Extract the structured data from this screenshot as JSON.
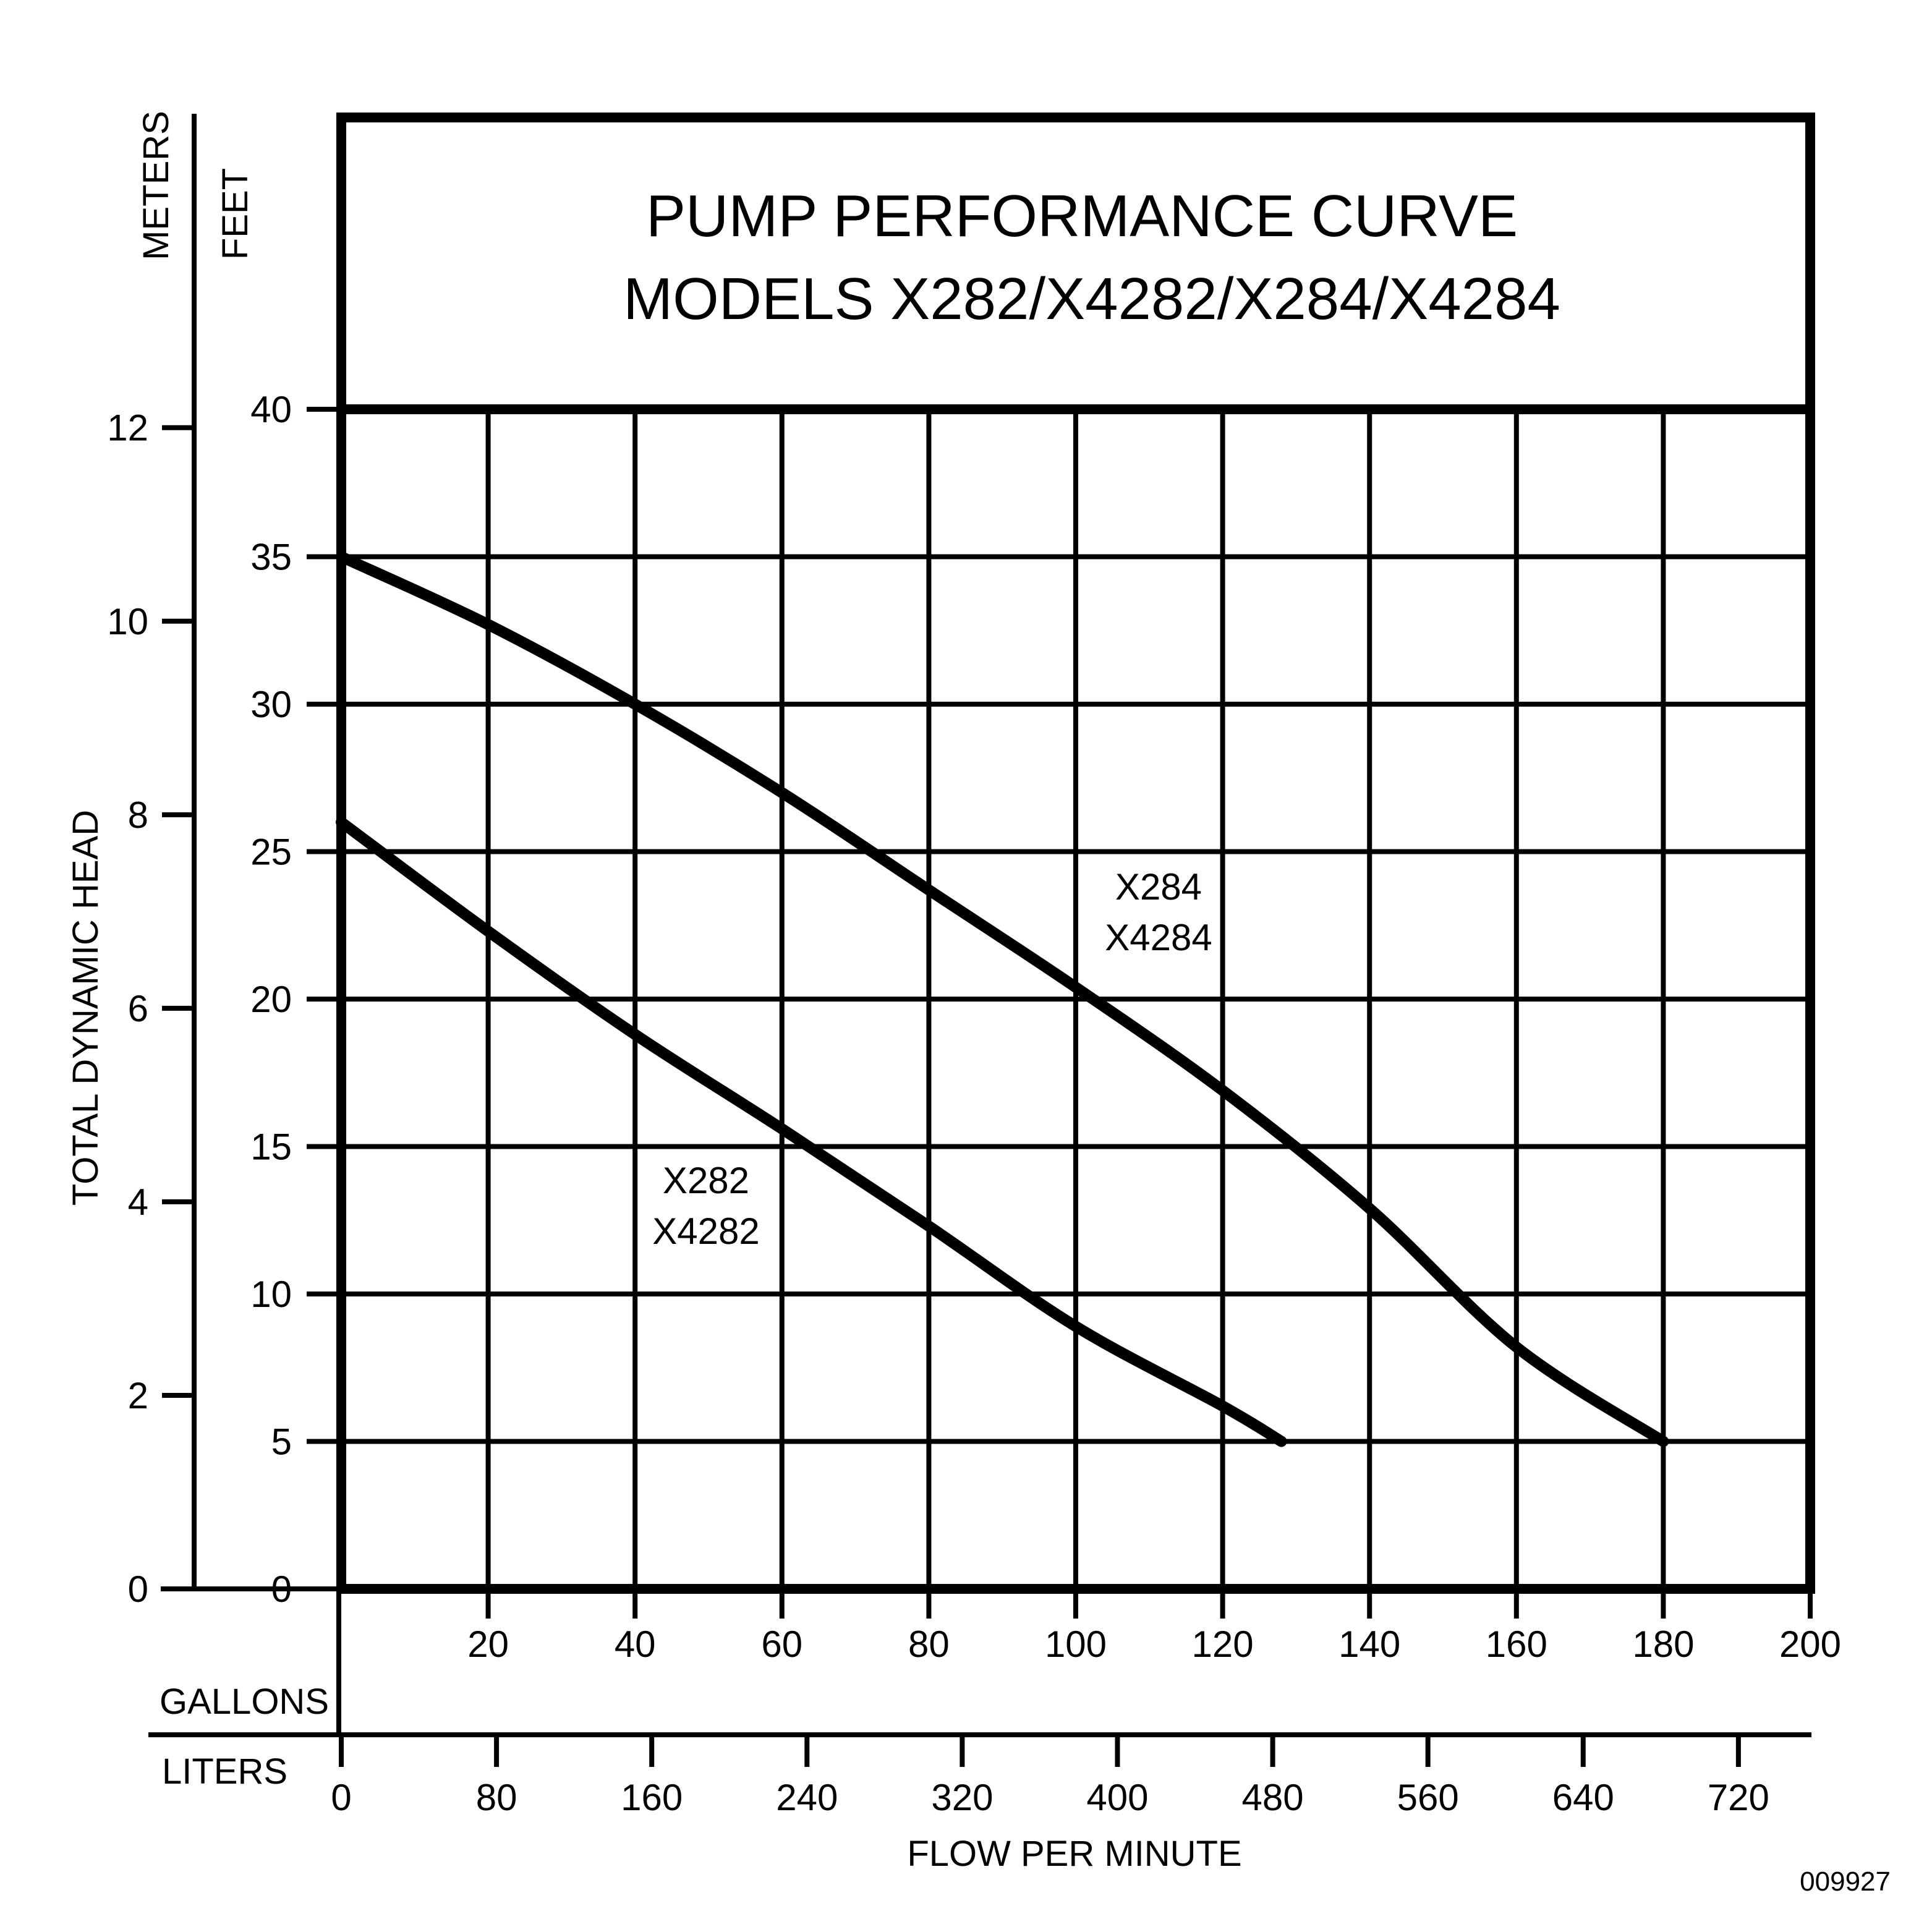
{
  "chart_data": {
    "type": "line",
    "title": "PUMP PERFORMANCE CURVE",
    "subtitle": "MODELS X282/X4282/X284/X4284",
    "xlabel": "FLOW PER MINUTE",
    "ylabel": "TOTAL DYNAMIC HEAD",
    "x_axes": {
      "gallons": {
        "label": "GALLONS",
        "ticks": [
          20,
          40,
          60,
          80,
          100,
          120,
          140,
          160,
          180,
          200
        ],
        "range": [
          0,
          200
        ]
      },
      "liters": {
        "label": "LITERS",
        "ticks": [
          0,
          80,
          160,
          240,
          320,
          400,
          480,
          560,
          640,
          720
        ],
        "range": [
          0,
          757
        ]
      }
    },
    "y_axes": {
      "feet": {
        "label": "FEET",
        "ticks": [
          0,
          5,
          10,
          15,
          20,
          25,
          30,
          35,
          40
        ],
        "range": [
          0,
          40
        ]
      },
      "meters": {
        "label": "METERS",
        "ticks": [
          0,
          2,
          4,
          6,
          8,
          10,
          12
        ],
        "range": [
          0,
          12.19
        ]
      }
    },
    "grid": true,
    "series": [
      {
        "name_lines": [
          "X284",
          "X4284"
        ],
        "x": [
          0,
          20,
          40,
          60,
          80,
          100,
          120,
          140,
          160,
          180
        ],
        "y": [
          35,
          32.7,
          30,
          27,
          23.7,
          20.4,
          16.9,
          12.9,
          8.2,
          5
        ]
      },
      {
        "name_lines": [
          "X282",
          "X4282"
        ],
        "x": [
          0,
          20,
          40,
          60,
          80,
          100,
          120,
          128
        ],
        "y": [
          26,
          22.3,
          18.8,
          15.6,
          12.3,
          8.9,
          6.2,
          5
        ]
      }
    ]
  },
  "doc_id": "009927"
}
